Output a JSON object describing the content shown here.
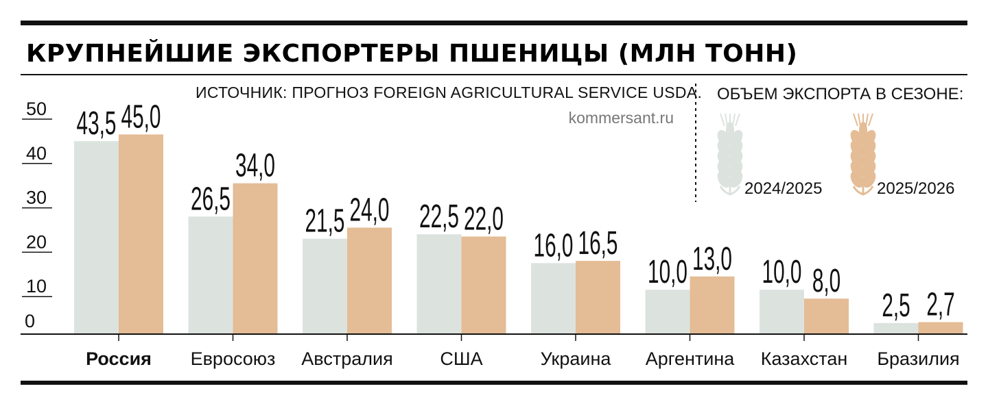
{
  "chart_data": {
    "type": "bar",
    "title": "КРУПНЕЙШИЕ ЭКСПОРТЕРЫ ПШЕНИЦЫ (МЛН ТОНН)",
    "source": "ИСТОЧНИК: ПРОГНОЗ FOREIGN AGRICULTURAL SERVICE USDA.",
    "site": "kommersant.ru",
    "legend_title": "ОБЪЕМ ЭКСПОРТА В СЕЗОНЕ:",
    "legend_position": "top-right",
    "ylim": [
      0,
      50
    ],
    "yticks": [
      "0",
      "10",
      "20",
      "30",
      "40",
      "50"
    ],
    "categories": [
      "Россия",
      "Евросоюз",
      "Австралия",
      "США",
      "Украина",
      "Аргентина",
      "Казахстан",
      "Бразилия"
    ],
    "highlight_category": "Россия",
    "series": [
      {
        "name": "2024/2025",
        "color": "#dce3df",
        "icon": "wheat-icon",
        "values": [
          43.5,
          26.5,
          21.5,
          22.5,
          16.0,
          10.0,
          10.0,
          2.5
        ],
        "labels": [
          "43,5",
          "26,5",
          "21,5",
          "22,5",
          "16,0",
          "10,0",
          "10,0",
          "2,5"
        ]
      },
      {
        "name": "2025/2026",
        "color": "#e4bc95",
        "icon": "wheat-icon",
        "values": [
          45.0,
          34.0,
          24.0,
          22.0,
          16.5,
          13.0,
          8.0,
          2.7
        ],
        "labels": [
          "45,0",
          "34,0",
          "24,0",
          "22,0",
          "16,5",
          "13,0",
          "8,0",
          "2,7"
        ]
      }
    ],
    "grid": false
  }
}
